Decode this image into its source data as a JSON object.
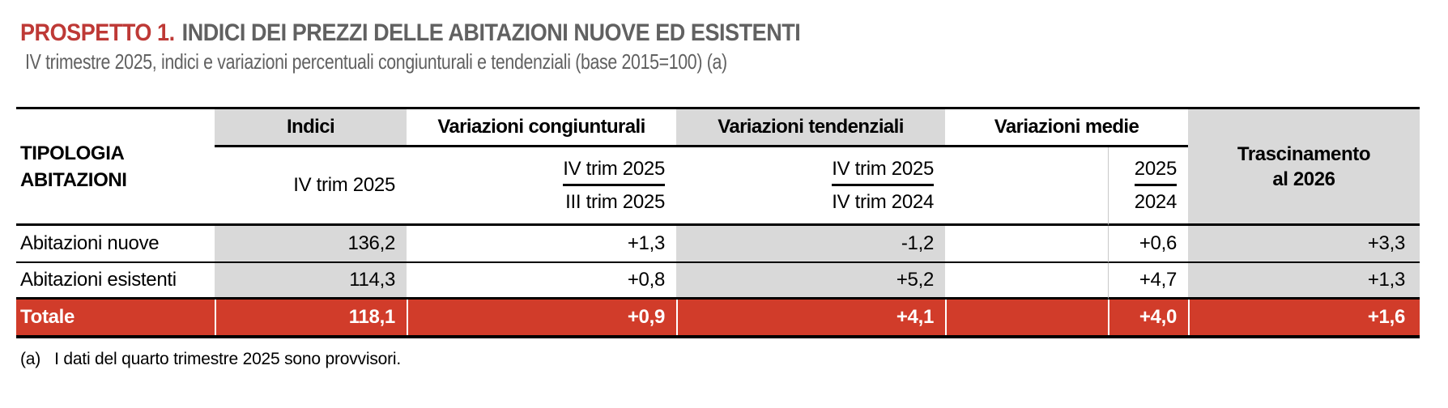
{
  "page": {
    "title_label": "PROSPETTO 1.",
    "title_text": "INDICI DEI PREZZI DELLE ABITAZIONI NUOVE ED ESISTENTI",
    "subtitle": "IV trimestre 2025, indici e variazioni percentuali congiunturali e tendenziali (base 2015=100) (a)",
    "footnote_marker": "(a)",
    "footnote_text": "I dati del quarto trimestre 2025 sono provvisori."
  },
  "colors": {
    "title_red": "#BE3936",
    "total_row_red": "#D13C2A",
    "cell_gray": "#D9D9D9",
    "heading_gray": "#616161"
  },
  "table": {
    "row_header": {
      "line1": "TIPOLOGIA",
      "line2": "ABITAZIONI"
    },
    "groups": {
      "indici": {
        "label": "Indici",
        "sub": "IV trim 2025"
      },
      "congiunturali": {
        "label": "Variazioni congiunturali",
        "sub_top": "IV trim 2025",
        "sub_bottom": "III trim 2025"
      },
      "tendenziali": {
        "label": "Variazioni tendenziali",
        "sub_top": "IV trim 2025",
        "sub_bottom": "IV trim 2024"
      },
      "medie": {
        "label": "Variazioni medie",
        "sub_top": "2025",
        "sub_bottom": "2024"
      },
      "trascinamento": {
        "line1": "Trascinamento",
        "line2": "al 2026"
      }
    },
    "rows": [
      {
        "label": "Abitazioni nuove",
        "indici": "136,2",
        "congiunturale": "+1,3",
        "tendenziale": "-1,2",
        "media": "+0,6",
        "trascinamento": "+3,3"
      },
      {
        "label": "Abitazioni esistenti",
        "indici": "114,3",
        "congiunturale": "+0,8",
        "tendenziale": "+5,2",
        "media": "+4,7",
        "trascinamento": "+1,3"
      },
      {
        "label": "Totale",
        "indici": "118,1",
        "congiunturale": "+0,9",
        "tendenziale": "+4,1",
        "media": "+4,0",
        "trascinamento": "+1,6"
      }
    ]
  }
}
